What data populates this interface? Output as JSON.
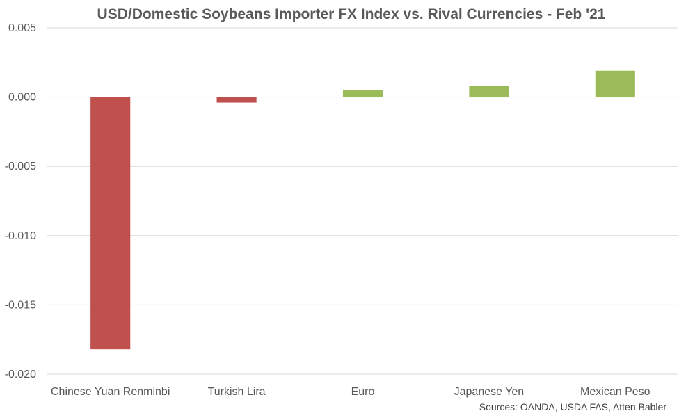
{
  "chart_data": {
    "type": "bar",
    "title": "USD/Domestic Soybeans Importer FX Index vs. Rival Currencies - Feb '21",
    "xlabel": "",
    "ylabel": "",
    "categories": [
      "Chinese Yuan Renminbi",
      "Turkish Lira",
      "Euro",
      "Japanese Yen",
      "Mexican Peso"
    ],
    "values": [
      -0.0182,
      -0.0004,
      0.0005,
      0.0008,
      0.0019
    ],
    "ylim": [
      -0.02,
      0.005
    ],
    "yticks": [
      0.005,
      0.0,
      -0.005,
      -0.01,
      -0.015,
      -0.02
    ],
    "ytick_labels": [
      "0.005",
      "0.000",
      "-0.005",
      "-0.010",
      "-0.015",
      "-0.020"
    ],
    "grid": true,
    "legend": "none",
    "colors": {
      "negative": "#c0504d",
      "positive": "#9bbb59",
      "gridline": "#d9d9d9",
      "text": "#595959"
    },
    "source": "Sources: OANDA, USDA FAS, Atten Babler"
  }
}
